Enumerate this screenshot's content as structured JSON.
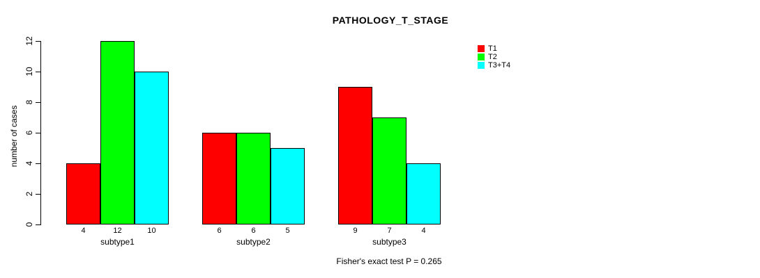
{
  "chart_data": {
    "type": "bar",
    "title": "PATHOLOGY_T_STAGE",
    "xlabel": "",
    "ylabel": "number of cases",
    "categories": [
      "subtype1",
      "subtype2",
      "subtype3"
    ],
    "series": [
      {
        "name": "T1",
        "color": "#FF0000",
        "values": [
          4,
          6,
          9
        ]
      },
      {
        "name": "T2",
        "color": "#00FF00",
        "values": [
          12,
          6,
          7
        ]
      },
      {
        "name": "T3+T4",
        "color": "#00FFFF",
        "values": [
          10,
          5,
          4
        ]
      }
    ],
    "bar_value_labels": [
      [
        4,
        12,
        10
      ],
      [
        6,
        6,
        5
      ],
      [
        9,
        7,
        4
      ]
    ],
    "yticks": [
      0,
      2,
      4,
      6,
      8,
      10,
      12
    ],
    "ylim": [
      0,
      12
    ],
    "grid": false,
    "legend_position": "top-right",
    "annotation": "Fisher's exact test P = 0.265",
    "background_color": "#FFFFFF",
    "axis_color": "#000000"
  }
}
